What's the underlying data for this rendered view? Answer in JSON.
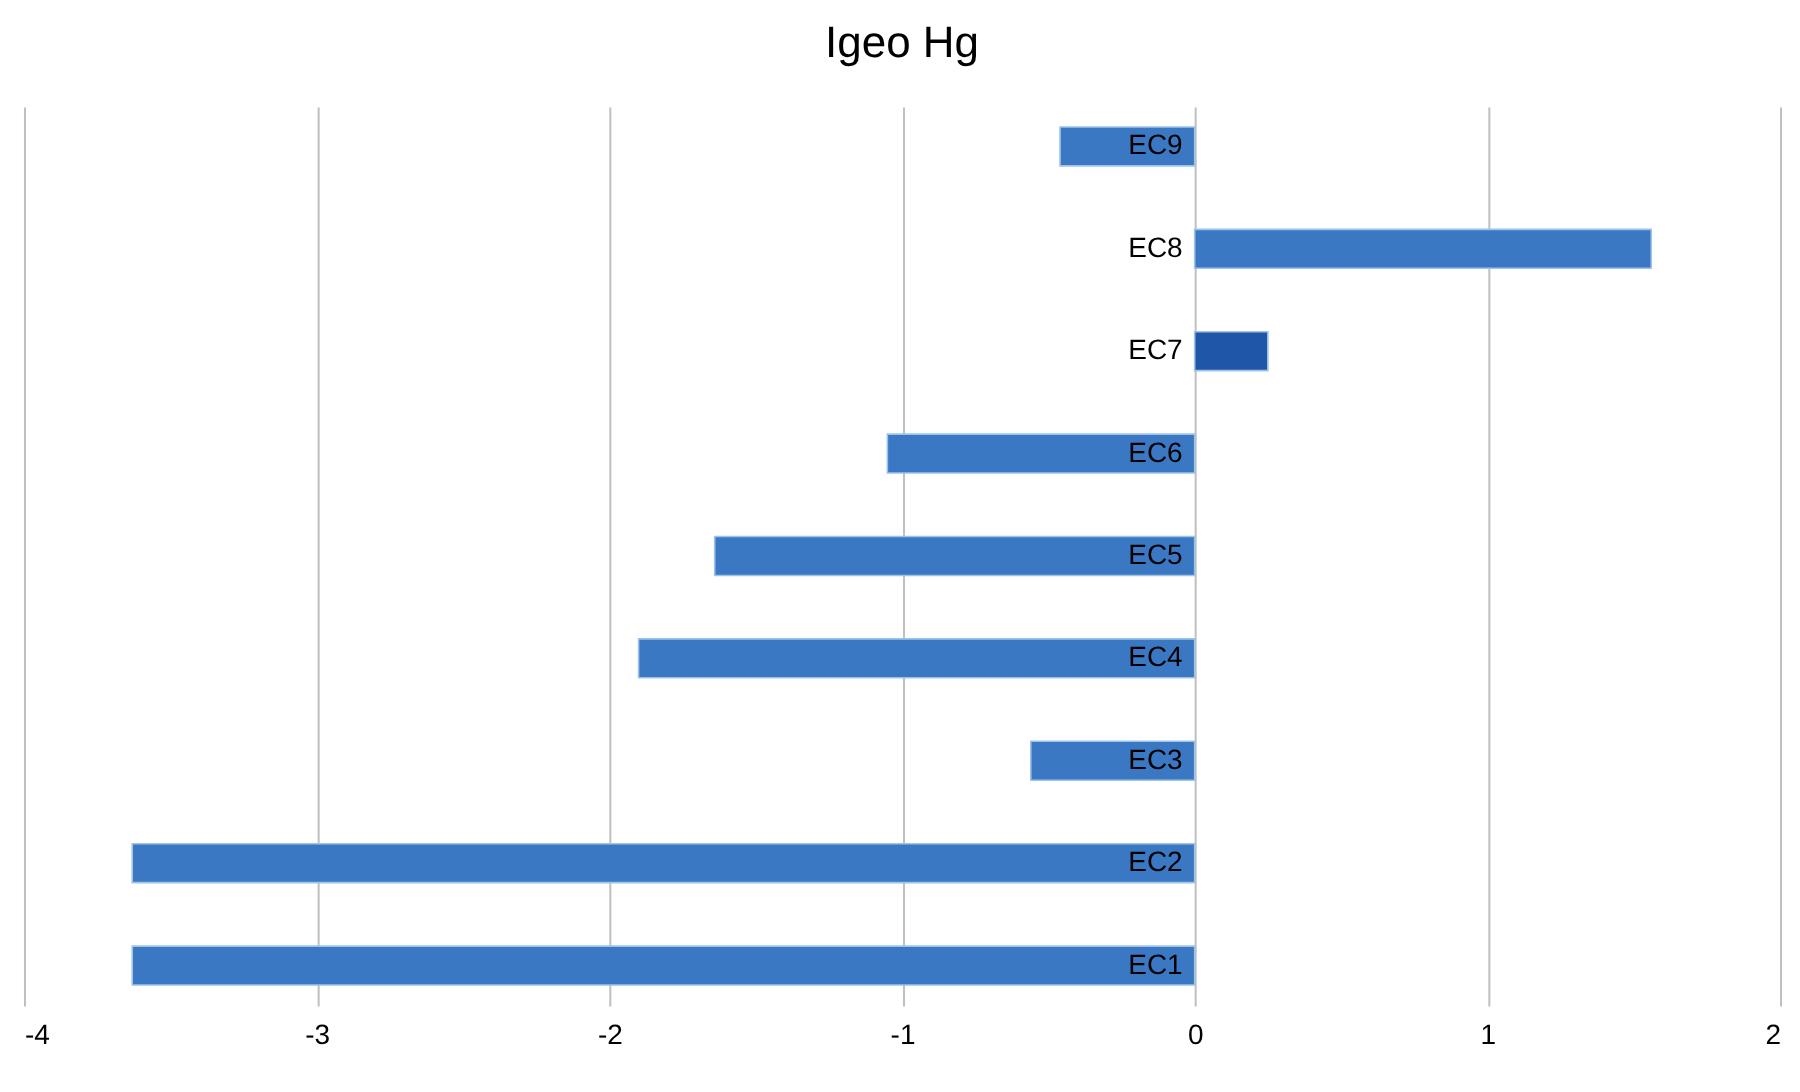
{
  "chart_data": {
    "type": "bar",
    "orientation": "horizontal",
    "title": "Igeo Hg",
    "categories": [
      "EC9",
      "EC8",
      "EC7",
      "EC6",
      "EC5",
      "EC4",
      "EC3",
      "EC2",
      "EC1"
    ],
    "values": [
      -0.46,
      1.56,
      0.25,
      -1.05,
      -1.64,
      -1.9,
      -0.56,
      -3.63,
      -3.63
    ],
    "colors": [
      "#3b78c4",
      "#3b78c4",
      "#1f56a8",
      "#3b78c4",
      "#3b78c4",
      "#3b78c4",
      "#3b78c4",
      "#3b78c4",
      "#3b78c4"
    ],
    "xlim": [
      -4,
      2
    ],
    "xticks": [
      -4,
      -3,
      -2,
      -1,
      0,
      1,
      2
    ],
    "grid": "x"
  }
}
